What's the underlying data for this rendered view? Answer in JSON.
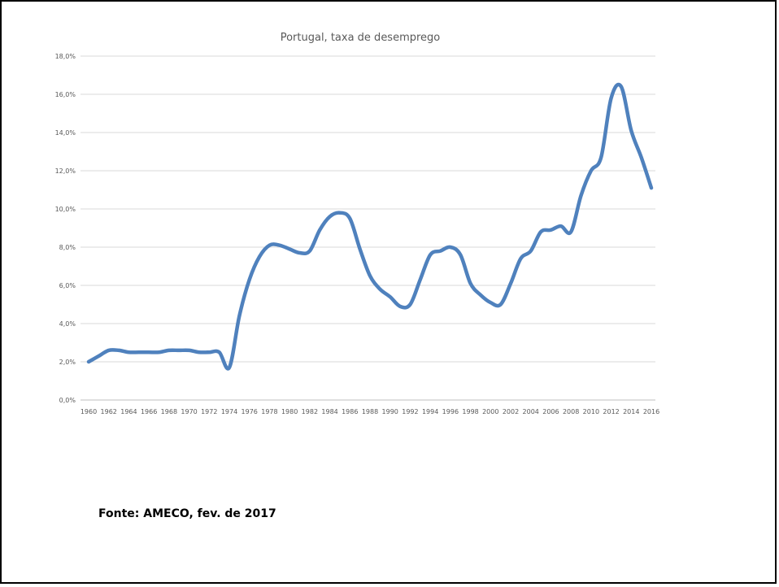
{
  "chart_data": {
    "type": "line",
    "title": "Portugal, taxa de desemprego",
    "xlabel": "",
    "ylabel": "",
    "ylim": [
      0,
      18
    ],
    "y_tick_labels": [
      "0,0%",
      "2,0%",
      "4,0%",
      "6,0%",
      "8,0%",
      "10,0%",
      "12,0%",
      "14,0%",
      "16,0%",
      "18,0%"
    ],
    "x_tick_labels": [
      "1960",
      "1962",
      "1964",
      "1966",
      "1968",
      "1970",
      "1972",
      "1974",
      "1976",
      "1978",
      "1980",
      "1982",
      "1984",
      "1986",
      "1988",
      "1990",
      "1992",
      "1994",
      "1996",
      "1998",
      "2000",
      "2002",
      "2004",
      "2006",
      "2008",
      "2010",
      "2012",
      "2014",
      "2016"
    ],
    "grid": true,
    "legend": "none",
    "line_color": "#4F81BD",
    "series": [
      {
        "x": [
          1960,
          1961,
          1962,
          1963,
          1964,
          1965,
          1966,
          1967,
          1968,
          1969,
          1970,
          1971,
          1972,
          1973,
          1974,
          1975,
          1976,
          1977,
          1978,
          1979,
          1980,
          1981,
          1982,
          1983,
          1984,
          1985,
          1986,
          1987,
          1988,
          1989,
          1990,
          1991,
          1992,
          1993,
          1994,
          1995,
          1996,
          1997,
          1998,
          1999,
          2000,
          2001,
          2002,
          2003,
          2004,
          2005,
          2006,
          2007,
          2008,
          2009,
          2010,
          2011,
          2012,
          2013,
          2014,
          2015,
          2016
        ],
        "values": [
          2.0,
          2.3,
          2.6,
          2.6,
          2.5,
          2.5,
          2.5,
          2.5,
          2.6,
          2.6,
          2.6,
          2.5,
          2.5,
          2.5,
          1.7,
          4.4,
          6.3,
          7.5,
          8.1,
          8.1,
          7.9,
          7.7,
          7.8,
          8.9,
          9.6,
          9.8,
          9.5,
          7.9,
          6.5,
          5.8,
          5.4,
          4.9,
          5.0,
          6.3,
          7.6,
          7.8,
          8.0,
          7.6,
          6.1,
          5.5,
          5.1,
          5.0,
          6.1,
          7.4,
          7.8,
          8.8,
          8.9,
          9.1,
          8.8,
          10.7,
          12.0,
          12.7,
          15.8,
          16.4,
          14.1,
          12.7,
          11.1
        ]
      }
    ]
  },
  "source_text": "Fonte: AMECO, fev. de 2017"
}
